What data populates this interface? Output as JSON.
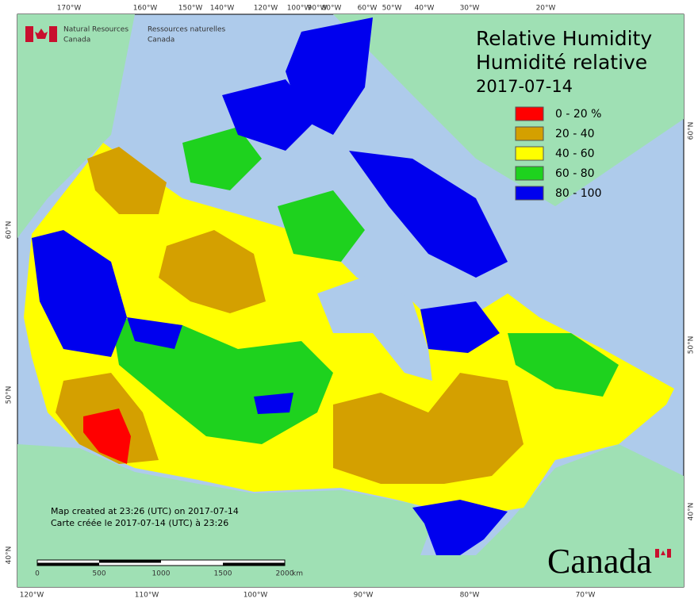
{
  "map": {
    "title_en": "Relative Humidity",
    "title_fr": "Humidité relative",
    "date": "2017-07-14",
    "agency": {
      "en": [
        "Natural Resources",
        "Canada"
      ],
      "fr": [
        "Ressources naturelles",
        "Canada"
      ]
    },
    "legend": [
      {
        "label": "0 - 20 %",
        "color": "#ff0000"
      },
      {
        "label": "20 - 40",
        "color": "#d4a000"
      },
      {
        "label": "40 - 60",
        "color": "#ffff00"
      },
      {
        "label": "60 - 80",
        "color": "#1ed21e"
      },
      {
        "label": "80 - 100",
        "color": "#0000ee"
      }
    ],
    "top_longitudes": [
      "170°W",
      "160°W",
      "150°W",
      "140°W",
      "120°W",
      "100°W",
      "90°W",
      "80°W",
      "60°W",
      "50°W",
      "40°W",
      "30°W",
      "20°W"
    ],
    "bottom_longitudes": [
      "120°W",
      "110°W",
      "100°W",
      "90°W",
      "80°W",
      "70°W"
    ],
    "left_latitudes": [
      "60°N",
      "50°N",
      "40°N"
    ],
    "right_latitudes": [
      "60°N",
      "50°N",
      "40°N"
    ],
    "credits": [
      "Map created at 23:26 (UTC) on 2017-07-14",
      "Carte créée le 2017-07-14 (UTC) à 23:26"
    ],
    "scale": {
      "ticks": [
        "0",
        "500",
        "1000",
        "1500",
        "2000"
      ],
      "unit": "km"
    },
    "wordmark": "Canada"
  }
}
